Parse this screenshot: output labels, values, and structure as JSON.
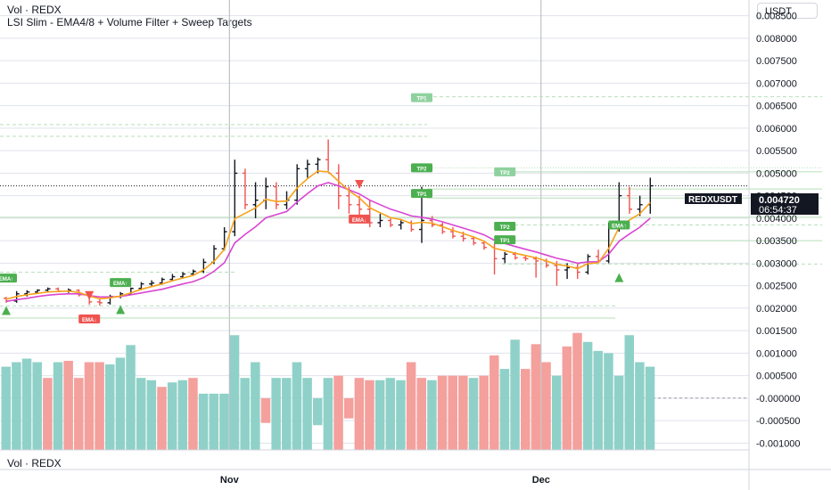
{
  "legend": {
    "volume_title": "Vol · REDX",
    "indicator_title": "LSI Slim - EMA4/8 + Volume Filter + Sweep Targets",
    "bottom_pane_title": "Vol · REDX"
  },
  "currency_selector": "USDT",
  "price_badge": {
    "symbol": "REDXUSDT",
    "price": "0.004720",
    "countdown": "06:54:37",
    "value": 0.00472
  },
  "colors": {
    "up": "#26a69a",
    "down": "#ef5350",
    "ema_fast": "#f7a21b",
    "ema_slow": "#d946d3",
    "vol_up": "#8fd1c8",
    "vol_down": "#f4a09c",
    "level_line": "#b7dfb9",
    "grid": "#e0e3eb"
  },
  "chart_data": {
    "type": "candlestick",
    "x_ticks": [
      "Nov",
      "Dec"
    ],
    "y_ticks": [
      "0.008500",
      "0.008000",
      "0.007500",
      "0.007000",
      "0.006500",
      "0.006000",
      "0.005500",
      "0.005000",
      "0.004500",
      "0.004000",
      "0.003500",
      "0.003000",
      "0.002500",
      "0.002000",
      "0.001500",
      "0.001000",
      "0.000500",
      "-0.000000",
      "-0.000500",
      "-0.001000"
    ],
    "y_tick_values": [
      0.0085,
      0.008,
      0.0075,
      0.007,
      0.0065,
      0.006,
      0.0055,
      0.005,
      0.0045,
      0.004,
      0.0035,
      0.003,
      0.0025,
      0.002,
      0.0015,
      0.001,
      0.0005,
      0,
      -0.0005,
      -0.001
    ],
    "ylim": [
      -0.00115,
      0.00885
    ],
    "nov_index": 22,
    "dec_index": 52,
    "candles": [
      [
        0.00222,
        0.00225,
        0.00212,
        0.00216
      ],
      [
        0.00216,
        0.00238,
        0.00212,
        0.00232
      ],
      [
        0.00232,
        0.0024,
        0.00226,
        0.00236
      ],
      [
        0.00236,
        0.00242,
        0.00232,
        0.0024
      ],
      [
        0.0024,
        0.00246,
        0.00236,
        0.00243
      ],
      [
        0.00243,
        0.00246,
        0.00236,
        0.00238
      ],
      [
        0.00238,
        0.00244,
        0.00234,
        0.0024
      ],
      [
        0.0024,
        0.00242,
        0.00226,
        0.0023
      ],
      [
        0.0023,
        0.00234,
        0.00208,
        0.00214
      ],
      [
        0.00214,
        0.00222,
        0.00206,
        0.00212
      ],
      [
        0.00212,
        0.0023,
        0.00208,
        0.00226
      ],
      [
        0.00226,
        0.00236,
        0.00222,
        0.00232
      ],
      [
        0.00232,
        0.00246,
        0.0023,
        0.00244
      ],
      [
        0.00244,
        0.00258,
        0.0024,
        0.00254
      ],
      [
        0.00254,
        0.00262,
        0.00248,
        0.00256
      ],
      [
        0.00256,
        0.00268,
        0.00252,
        0.00264
      ],
      [
        0.00264,
        0.00276,
        0.0026,
        0.0027
      ],
      [
        0.0027,
        0.0028,
        0.00266,
        0.00276
      ],
      [
        0.00276,
        0.00286,
        0.00272,
        0.00282
      ],
      [
        0.00282,
        0.0031,
        0.00278,
        0.00302
      ],
      [
        0.00302,
        0.0034,
        0.00298,
        0.00332
      ],
      [
        0.00332,
        0.0038,
        0.00328,
        0.0037
      ],
      [
        0.0037,
        0.0053,
        0.0036,
        0.005
      ],
      [
        0.005,
        0.0051,
        0.0042,
        0.0043
      ],
      [
        0.0043,
        0.0048,
        0.004,
        0.0044
      ],
      [
        0.0044,
        0.0049,
        0.0042,
        0.0047
      ],
      [
        0.0047,
        0.0048,
        0.0042,
        0.0043
      ],
      [
        0.0043,
        0.0046,
        0.0042,
        0.0044
      ],
      [
        0.0044,
        0.0052,
        0.0043,
        0.0051
      ],
      [
        0.0051,
        0.0053,
        0.0049,
        0.0052
      ],
      [
        0.0052,
        0.00535,
        0.005,
        0.0053
      ],
      [
        0.0053,
        0.00575,
        0.00505,
        0.005
      ],
      [
        0.005,
        0.0052,
        0.0042,
        0.0045
      ],
      [
        0.0045,
        0.0047,
        0.0041,
        0.0043
      ],
      [
        0.0043,
        0.0045,
        0.00405,
        0.0042
      ],
      [
        0.0042,
        0.0044,
        0.0038,
        0.0039
      ],
      [
        0.0039,
        0.0041,
        0.0038,
        0.00395
      ],
      [
        0.00395,
        0.004,
        0.0038,
        0.00385
      ],
      [
        0.00385,
        0.00395,
        0.00375,
        0.0039
      ],
      [
        0.0039,
        0.00395,
        0.0037,
        0.00375
      ],
      [
        0.00375,
        0.0047,
        0.00345,
        0.00395
      ],
      [
        0.00395,
        0.00405,
        0.0038,
        0.00385
      ],
      [
        0.00385,
        0.0039,
        0.00365,
        0.0037
      ],
      [
        0.0037,
        0.0038,
        0.00355,
        0.0036
      ],
      [
        0.0036,
        0.0037,
        0.00348,
        0.00355
      ],
      [
        0.00355,
        0.0036,
        0.0034,
        0.00345
      ],
      [
        0.00345,
        0.0035,
        0.0033,
        0.00335
      ],
      [
        0.00335,
        0.00345,
        0.00275,
        0.0031
      ],
      [
        0.0031,
        0.00325,
        0.003,
        0.0032
      ],
      [
        0.0032,
        0.00325,
        0.00308,
        0.00312
      ],
      [
        0.00312,
        0.00318,
        0.00305,
        0.0031
      ],
      [
        0.0031,
        0.00315,
        0.00268,
        0.00305
      ],
      [
        0.00305,
        0.0031,
        0.0029,
        0.00295
      ],
      [
        0.00295,
        0.00305,
        0.0025,
        0.00285
      ],
      [
        0.00285,
        0.003,
        0.00265,
        0.0029
      ],
      [
        0.0029,
        0.003,
        0.00265,
        0.0028
      ],
      [
        0.0028,
        0.0032,
        0.00275,
        0.00315
      ],
      [
        0.00315,
        0.0033,
        0.003,
        0.00305
      ],
      [
        0.00305,
        0.0039,
        0.003,
        0.0038
      ],
      [
        0.0038,
        0.0048,
        0.0037,
        0.0045
      ],
      [
        0.0045,
        0.0047,
        0.0041,
        0.0042
      ],
      [
        0.0042,
        0.0045,
        0.00405,
        0.0043
      ],
      [
        0.0043,
        0.0049,
        0.0041,
        0.00472
      ]
    ],
    "volumes": [
      [
        0.0007,
        1
      ],
      [
        0.0008,
        1
      ],
      [
        0.00088,
        1
      ],
      [
        0.0008,
        1
      ],
      [
        0.00045,
        0
      ],
      [
        0.0008,
        1
      ],
      [
        0.00083,
        0
      ],
      [
        0.00045,
        0
      ],
      [
        0.0008,
        0
      ],
      [
        0.0008,
        0
      ],
      [
        0.00075,
        1
      ],
      [
        0.0009,
        1
      ],
      [
        0.00118,
        1
      ],
      [
        0.00045,
        1
      ],
      [
        0.0004,
        1
      ],
      [
        0.00025,
        0
      ],
      [
        0.00035,
        1
      ],
      [
        0.0004,
        1
      ],
      [
        0.00045,
        0
      ],
      [
        0.0001,
        1
      ],
      [
        0.0001,
        1
      ],
      [
        0.0001,
        1
      ],
      [
        0.0014,
        1
      ],
      [
        0.00045,
        1
      ],
      [
        0.0008,
        1
      ],
      [
        -0.00055,
        0
      ],
      [
        0.00045,
        1
      ],
      [
        0.00045,
        1
      ],
      [
        0.0008,
        1
      ],
      [
        0.00045,
        1
      ],
      [
        -0.0006,
        1
      ],
      [
        0.00045,
        1
      ],
      [
        0.0005,
        0
      ],
      [
        -0.00045,
        0
      ],
      [
        0.00045,
        0
      ],
      [
        0.0004,
        0
      ],
      [
        0.0004,
        1
      ],
      [
        0.00045,
        1
      ],
      [
        0.0004,
        1
      ],
      [
        0.0008,
        0
      ],
      [
        0.00045,
        0
      ],
      [
        0.0004,
        1
      ],
      [
        0.0005,
        0
      ],
      [
        0.0005,
        0
      ],
      [
        0.0005,
        0
      ],
      [
        0.00045,
        1
      ],
      [
        0.0005,
        0
      ],
      [
        0.00095,
        0
      ],
      [
        0.00065,
        1
      ],
      [
        0.0013,
        1
      ],
      [
        0.00065,
        0
      ],
      [
        0.0012,
        0
      ],
      [
        0.0008,
        0
      ],
      [
        0.0005,
        1
      ],
      [
        0.00115,
        0
      ],
      [
        0.00145,
        0
      ],
      [
        0.00125,
        1
      ],
      [
        0.00105,
        1
      ],
      [
        0.001,
        1
      ],
      [
        0.0005,
        1
      ],
      [
        0.0014,
        1
      ],
      [
        0.0008,
        1
      ],
      [
        0.0007,
        1
      ]
    ],
    "ema_fast": [
      0.0022,
      0.00226,
      0.0023,
      0.00233,
      0.00236,
      0.00237,
      0.00238,
      0.00235,
      0.00227,
      0.00221,
      0.00223,
      0.00227,
      0.00234,
      0.00242,
      0.00248,
      0.00254,
      0.00261,
      0.00267,
      0.00273,
      0.00285,
      0.00304,
      0.00331,
      0.00399,
      0.00411,
      0.00423,
      0.00442,
      0.00437,
      0.00438,
      0.00467,
      0.00488,
      0.00505,
      0.00503,
      0.00482,
      0.00461,
      0.00445,
      0.00423,
      0.00412,
      0.00401,
      0.00397,
      0.00388,
      0.00391,
      0.00389,
      0.00381,
      0.00373,
      0.00366,
      0.00358,
      0.00349,
      0.00333,
      0.00328,
      0.00322,
      0.00317,
      0.00312,
      0.00305,
      0.00297,
      0.00294,
      0.00288,
      0.00299,
      0.00301,
      0.00333,
      0.0038,
      0.00396,
      0.0041,
      0.00435
    ],
    "ema_slow": [
      0.00215,
      0.00219,
      0.00222,
      0.00226,
      0.00229,
      0.00231,
      0.00232,
      0.00232,
      0.00228,
      0.00225,
      0.00225,
      0.00226,
      0.0023,
      0.00234,
      0.00238,
      0.00242,
      0.00248,
      0.00254,
      0.00259,
      0.00268,
      0.00282,
      0.00301,
      0.00345,
      0.00364,
      0.00381,
      0.00401,
      0.00408,
      0.00415,
      0.00436,
      0.00455,
      0.00472,
      0.00479,
      0.00472,
      0.00463,
      0.00454,
      0.0044,
      0.0043,
      0.0042,
      0.00413,
      0.00405,
      0.00402,
      0.00398,
      0.00392,
      0.00385,
      0.00378,
      0.00371,
      0.00363,
      0.00351,
      0.00344,
      0.00337,
      0.00331,
      0.00325,
      0.00318,
      0.00311,
      0.00306,
      0.003,
      0.00303,
      0.00303,
      0.0032,
      0.00349,
      0.00365,
      0.0038,
      0.004
    ]
  },
  "levels": [
    {
      "y": 0.0067,
      "x1": 479,
      "x2": 922,
      "style": "dash"
    },
    {
      "y": 0.00608,
      "x1": 0,
      "x2": 479,
      "style": "dash"
    },
    {
      "y": 0.00582,
      "x1": 0,
      "x2": 479,
      "style": "dash"
    },
    {
      "y": 0.00512,
      "x1": 479,
      "x2": 922,
      "style": "dot"
    },
    {
      "y": 0.00503,
      "x1": 563,
      "x2": 922,
      "style": "solid"
    },
    {
      "y": 0.00465,
      "x1": 479,
      "x2": 922,
      "style": "solid"
    },
    {
      "y": 0.00445,
      "x1": 479,
      "x2": 922,
      "style": "solid"
    },
    {
      "y": 0.00402,
      "x1": 0,
      "x2": 922,
      "style": "solid"
    },
    {
      "y": 0.00385,
      "x1": 563,
      "x2": 922,
      "style": "dash"
    },
    {
      "y": 0.0035,
      "x1": 563,
      "x2": 922,
      "style": "solid"
    },
    {
      "y": 0.00298,
      "x1": 563,
      "x2": 922,
      "style": "dash"
    },
    {
      "y": 0.0028,
      "x1": 0,
      "x2": 265,
      "style": "dash"
    },
    {
      "y": 0.00205,
      "x1": 0,
      "x2": 690,
      "style": "dash"
    },
    {
      "y": 0.00178,
      "x1": 0,
      "x2": 690,
      "style": "solid"
    }
  ],
  "markers": [
    {
      "type": "tag",
      "text": "TP1",
      "i": 40,
      "y": 0.00668,
      "color": "#8fd19e"
    },
    {
      "type": "tag",
      "text": "TP2",
      "i": 40,
      "y": 0.00512,
      "color": "#4caf50"
    },
    {
      "type": "tag",
      "text": "TP1",
      "i": 40,
      "y": 0.00455,
      "color": "#4caf50"
    },
    {
      "type": "tag",
      "text": "TP2",
      "i": 48,
      "y": 0.00503,
      "color": "#8fd19e"
    },
    {
      "type": "tag",
      "text": "TP2",
      "i": 48,
      "y": 0.00382,
      "color": "#4caf50"
    },
    {
      "type": "tag",
      "text": "TP1",
      "i": 48,
      "y": 0.00352,
      "color": "#4caf50"
    },
    {
      "type": "tag",
      "text": "EMA↑",
      "i": 0,
      "y": 0.00267,
      "color": "#4caf50"
    },
    {
      "type": "tag",
      "text": "EMA↑",
      "i": 11,
      "y": 0.00257,
      "color": "#4caf50"
    },
    {
      "type": "tag",
      "text": "EMA↓",
      "i": 8,
      "y": 0.00176,
      "color": "#ef5350"
    },
    {
      "type": "tag",
      "text": "EMA↓",
      "i": 34,
      "y": 0.00398,
      "color": "#ef5350"
    },
    {
      "type": "tag",
      "text": "EMA↑",
      "i": 59,
      "y": 0.00385,
      "color": "#4caf50"
    },
    {
      "type": "arrow",
      "dir": "up",
      "i": 0,
      "y": 0.00195
    },
    {
      "type": "arrow",
      "dir": "up",
      "i": 11,
      "y": 0.00197
    },
    {
      "type": "arrow",
      "dir": "down",
      "i": 8,
      "y": 0.00228
    },
    {
      "type": "arrow",
      "dir": "down",
      "i": 34,
      "y": 0.00475
    },
    {
      "type": "arrow",
      "dir": "up",
      "i": 59,
      "y": 0.00268
    }
  ]
}
